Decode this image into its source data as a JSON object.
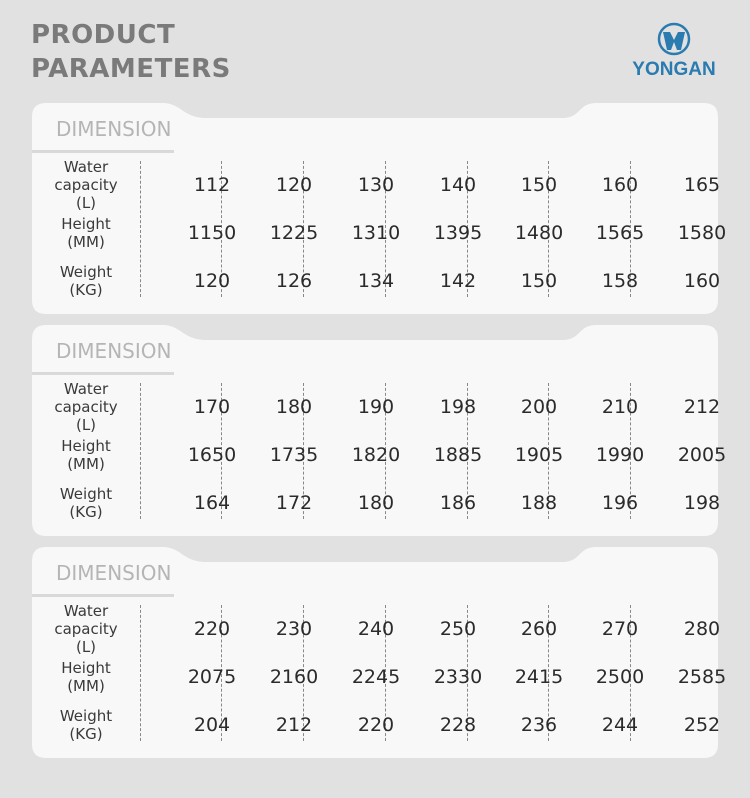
{
  "header": {
    "title_line1": "PRODUCT",
    "title_line2": "PARAMETERS"
  },
  "logo": {
    "text": "YONGAN",
    "color": "#2a7bb0"
  },
  "tables": [
    {
      "heading": "DIMENSION",
      "rows": [
        {
          "label": [
            "Water",
            "capacity",
            "(L)"
          ],
          "values": [
            "112",
            "120",
            "130",
            "140",
            "150",
            "160",
            "165"
          ]
        },
        {
          "label": [
            "Height",
            "(MM)"
          ],
          "values": [
            "1150",
            "1225",
            "1310",
            "1395",
            "1480",
            "1565",
            "1580"
          ]
        },
        {
          "label": [
            "Weight",
            "(KG)"
          ],
          "values": [
            "120",
            "126",
            "134",
            "142",
            "150",
            "158",
            "160"
          ]
        }
      ]
    },
    {
      "heading": "DIMENSION",
      "rows": [
        {
          "label": [
            "Water",
            "capacity",
            "(L)"
          ],
          "values": [
            "170",
            "180",
            "190",
            "198",
            "200",
            "210",
            "212"
          ]
        },
        {
          "label": [
            "Height",
            "(MM)"
          ],
          "values": [
            "1650",
            "1735",
            "1820",
            "1885",
            "1905",
            "1990",
            "2005"
          ]
        },
        {
          "label": [
            "Weight",
            "(KG)"
          ],
          "values": [
            "164",
            "172",
            "180",
            "186",
            "188",
            "196",
            "198"
          ]
        }
      ]
    },
    {
      "heading": "DIMENSION",
      "rows": [
        {
          "label": [
            "Water",
            "capacity",
            "(L)"
          ],
          "values": [
            "220",
            "230",
            "240",
            "250",
            "260",
            "270",
            "280"
          ]
        },
        {
          "label": [
            "Height",
            "(MM)"
          ],
          "values": [
            "2075",
            "2160",
            "2245",
            "2330",
            "2415",
            "2500",
            "2585"
          ]
        },
        {
          "label": [
            "Weight",
            "(KG)"
          ],
          "values": [
            "204",
            "212",
            "220",
            "228",
            "236",
            "244",
            "252"
          ]
        }
      ]
    }
  ]
}
